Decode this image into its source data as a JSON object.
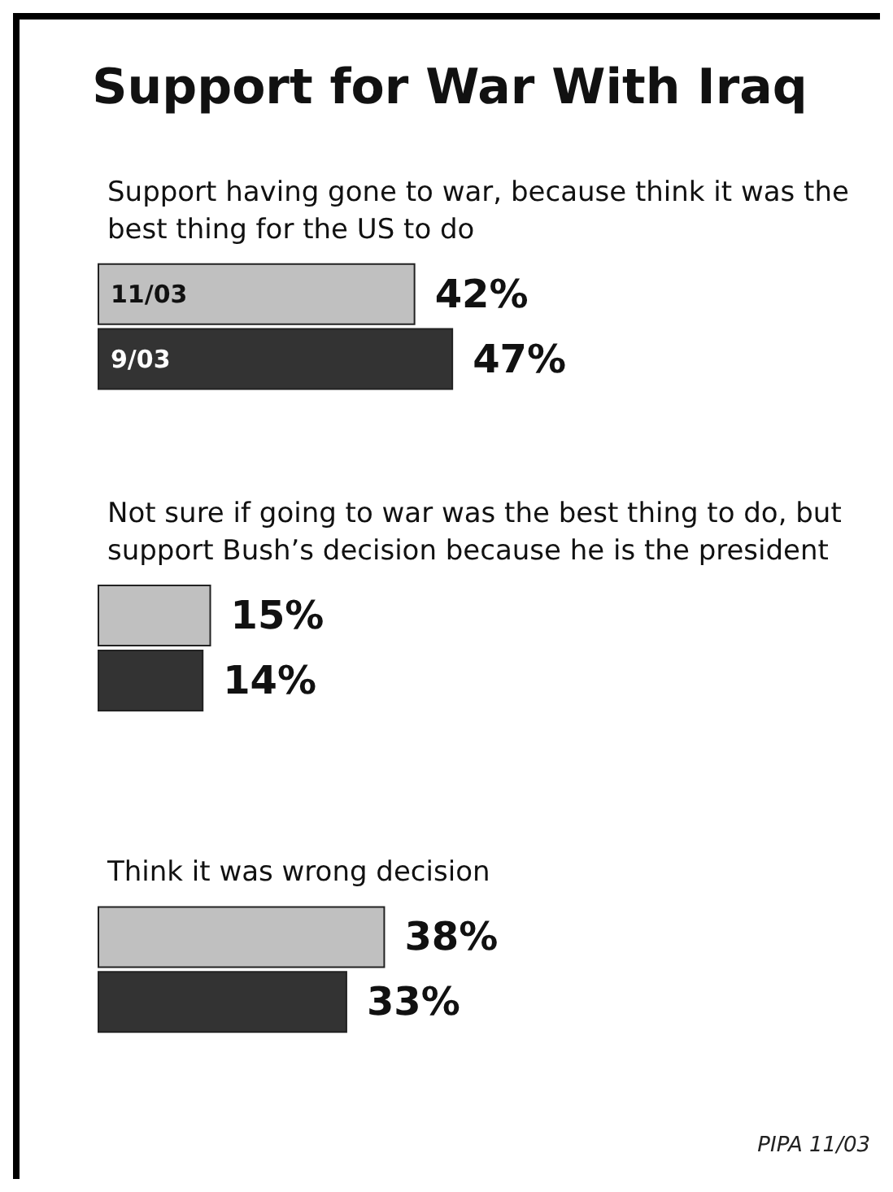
{
  "chart_data": {
    "type": "bar",
    "orientation": "horizontal",
    "title": "Support for War With Iraq",
    "categories": [
      "Support having gone to war, because think it was the best thing for the US to do",
      "Not sure if going to war was the best thing to do, but support Bush’s decision because he is the president",
      "Think it was wrong decision"
    ],
    "series": [
      {
        "name": "11/03",
        "color": "#c0c0c0",
        "values": [
          42,
          15,
          38
        ],
        "value_labels": [
          "42%",
          "15%",
          "38%"
        ]
      },
      {
        "name": "9/03",
        "color": "#333333",
        "values": [
          47,
          14,
          33
        ],
        "value_labels": [
          "47%",
          "14%",
          "33%"
        ]
      }
    ],
    "tick_labels": false,
    "legend": false,
    "annotations": [
      "PIPA 11/03"
    ]
  }
}
